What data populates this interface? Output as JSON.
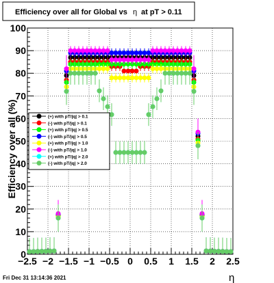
{
  "chart_data": {
    "type": "scatter",
    "title_text": "Efficiency over all for Global vs",
    "title_eta": "η",
    "title_tail": "at pT > 0.11",
    "xlabel": "η",
    "ylabel": "Efficiency over all (%)",
    "xlim": [
      -2.5,
      2.5
    ],
    "ylim": [
      0,
      100
    ],
    "grid": true,
    "legend_position": "middle-left",
    "footer": "Fri Dec 31 13:14:36 2021",
    "x_ticks": [
      "−2.5",
      "−2",
      "−1.5",
      "−1",
      "−0.5",
      "0",
      "0.5",
      "1",
      "1.5",
      "2",
      "2.5"
    ],
    "y_ticks": [
      "0",
      "10",
      "20",
      "30",
      "40",
      "50",
      "60",
      "70",
      "80",
      "90",
      "100"
    ],
    "series": [
      {
        "name": "(+) with pT/|q| > 0.1",
        "color": "#000000",
        "profile": "cut01",
        "plateau": 87
      },
      {
        "name": "(-) with pT/|q| > 0.1",
        "color": "#ff0000",
        "profile": "low",
        "plateau": 85
      },
      {
        "name": "(+) with pT/|q| > 0.5",
        "color": "#00ff00",
        "profile": "cut05",
        "plateau": 84
      },
      {
        "name": "(-) with pT/|q| > 0.5",
        "color": "#0000ff",
        "profile": "cut05",
        "plateau": 89
      },
      {
        "name": "(+) with pT/|q| > 1.0",
        "color": "#ffff00",
        "profile": "cut10",
        "plateau": 82
      },
      {
        "name": "(-) with pT/|q| > 1.0",
        "color": "#ff00ff",
        "profile": "cut10",
        "plateau": 90
      },
      {
        "name": "(+) with pT/|q| > 2.0",
        "color": "#00ffff",
        "profile": "cut20",
        "plateau": 80
      },
      {
        "name": "(-) with pT/|q| > 2.0",
        "color": "#66cc66",
        "profile": "cut20",
        "plateau": 80
      }
    ]
  }
}
